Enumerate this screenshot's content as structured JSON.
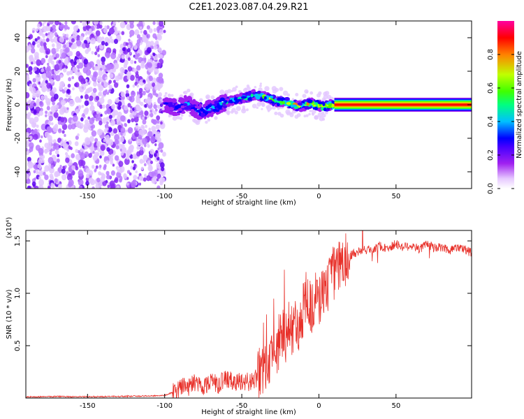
{
  "title": "C2E1.2023.087.04.29.R21",
  "chart_data": [
    {
      "type": "heatmap",
      "title": "C2E1.2023.087.04.29.R21",
      "xlabel": "Height of straight line (km)",
      "ylabel": "Frequency (Hz)",
      "xlim": [
        -190,
        99
      ],
      "ylim": [
        -50,
        50
      ],
      "xticks": [
        -150,
        -100,
        -50,
        0,
        50
      ],
      "yticks": [
        -40,
        -20,
        0,
        20,
        40
      ],
      "colorbar": {
        "label": "Normalized spectral amplitude",
        "range": [
          0,
          1
        ],
        "ticks": [
          "0.0",
          "0.2",
          "0.4",
          "0.6",
          "0.8"
        ],
        "colors": [
          "#ffffff",
          "#e6c8ff",
          "#a020f0",
          "#4400ff",
          "#0000ff",
          "#00c0ff",
          "#00ff80",
          "#40ff00",
          "#c0ff00",
          "#ff8000",
          "#ff0000",
          "#ff00a0"
        ]
      },
      "regions": [
        {
          "x": [
            -190,
            -100
          ],
          "description": "noise",
          "amplitude": [
            0.0,
            0.2
          ]
        },
        {
          "x": [
            -100,
            10
          ],
          "description": "signal near 0 Hz",
          "amplitude": [
            0.2,
            0.9
          ]
        },
        {
          "x": [
            10,
            99
          ],
          "description": "signal at 0 Hz",
          "amplitude": [
            0.9,
            1.0
          ]
        }
      ],
      "ridge": [
        {
          "x": -100,
          "y": 0
        },
        {
          "x": -92,
          "y": -2
        },
        {
          "x": -85,
          "y": 1
        },
        {
          "x": -78,
          "y": -4
        },
        {
          "x": -70,
          "y": -2
        },
        {
          "x": -62,
          "y": 1
        },
        {
          "x": -55,
          "y": 3
        },
        {
          "x": -48,
          "y": 4
        },
        {
          "x": -42,
          "y": 6
        },
        {
          "x": -35,
          "y": 5
        },
        {
          "x": -28,
          "y": 2
        },
        {
          "x": -20,
          "y": 1
        },
        {
          "x": -12,
          "y": -1
        },
        {
          "x": -5,
          "y": 1
        },
        {
          "x": 2,
          "y": -1
        },
        {
          "x": 10,
          "y": 0
        },
        {
          "x": 99,
          "y": 0
        }
      ]
    },
    {
      "type": "line",
      "xlabel": "Height of straight line (km)",
      "ylabel": "SNR (10 * v/v)",
      "y_multiplier": "(x10⁴)",
      "xlim": [
        -190,
        99
      ],
      "ylim": [
        0,
        16000
      ],
      "xticks": [
        -150,
        -100,
        -50,
        0,
        50
      ],
      "ytick_labels": [
        "0.5",
        "1.0",
        "1.5"
      ],
      "ytick_values": [
        5000,
        10000,
        15000
      ],
      "series": [
        {
          "color": "#e8312a",
          "x": [
            -190,
            -170,
            -150,
            -130,
            -110,
            -100,
            -92,
            -88,
            -85,
            -80,
            -75,
            -70,
            -65,
            -60,
            -55,
            -50,
            -45,
            -40,
            -37,
            -35,
            -32,
            -30,
            -27,
            -25,
            -22,
            -20,
            -17,
            -15,
            -12,
            -10,
            -8,
            -5,
            -2,
            0,
            3,
            6,
            10,
            14,
            18,
            22,
            26,
            30,
            35,
            40,
            45,
            50,
            55,
            60,
            65,
            70,
            75,
            80,
            85,
            90,
            95,
            99
          ],
          "y": [
            100,
            150,
            120,
            160,
            200,
            250,
            700,
            1400,
            900,
            1600,
            1100,
            1700,
            1300,
            1900,
            1400,
            1700,
            1500,
            1900,
            2700,
            3500,
            2900,
            5200,
            4300,
            6400,
            5500,
            7400,
            5900,
            8000,
            6500,
            8800,
            10300,
            8300,
            9700,
            9000,
            10600,
            10800,
            11900,
            12600,
            13300,
            13800,
            14000,
            14100,
            14300,
            14500,
            14300,
            14700,
            14400,
            14600,
            14200,
            14700,
            14300,
            14400,
            14100,
            14500,
            14200,
            13800
          ]
        }
      ]
    }
  ]
}
